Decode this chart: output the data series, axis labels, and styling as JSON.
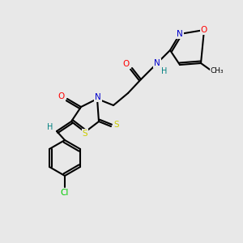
{
  "bg_color": "#e8e8e8",
  "atom_colors": {
    "O": "#ff0000",
    "N": "#0000cc",
    "S": "#cccc00",
    "Cl": "#00cc00",
    "H": "#008080",
    "C": "#000000"
  }
}
